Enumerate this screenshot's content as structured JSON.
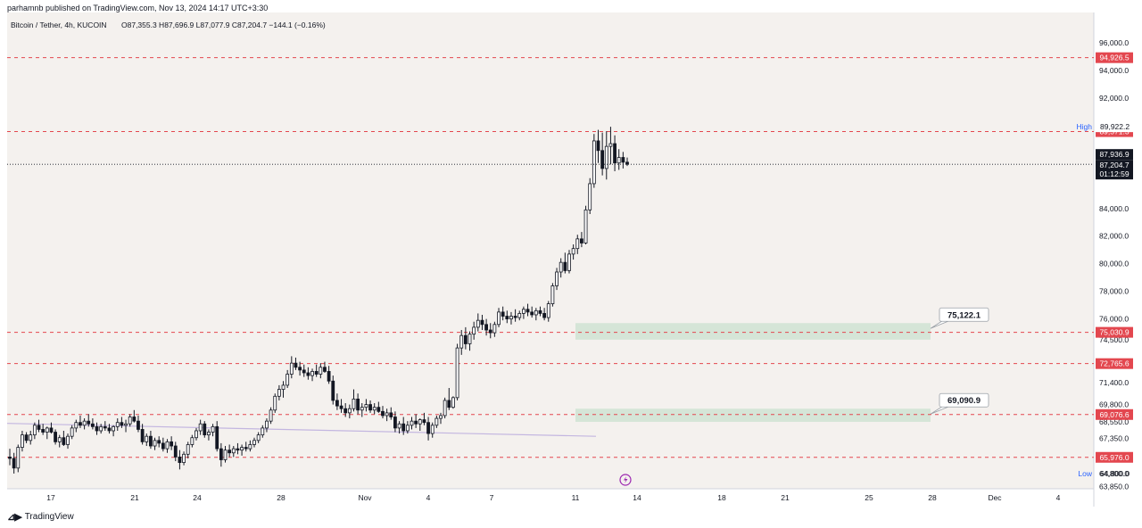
{
  "header": {
    "published_by": "parhamnb published on TradingView.com, Nov 13, 2024 14:17 UTC+3:30",
    "symbol": "Bitcoin / Tether, 4h, KUCOIN",
    "ohlc": "O87,355.3  H87,696.9  L87,077.9  C87,204.7  −144.1 (−0.16%)"
  },
  "footer": {
    "logo_text": "TradingView"
  },
  "colors": {
    "plot_bg": "#f4f1ee",
    "candle": "#131722",
    "level_line": "#e3474f",
    "level_label_bg": "#e3474f",
    "zone_fill": "#cfe3d2",
    "trend_line": "#c3b6e0",
    "last_price_bg": "#131722"
  },
  "chart_data": {
    "type": "candlestick",
    "ylim": [
      63700,
      98200
    ],
    "price_scale_labels": [
      "96,000.0",
      "94,000.0",
      "92,000.0",
      "84,000.0",
      "82,000.0",
      "80,000.0",
      "78,000.0",
      "76,000.0",
      "74,500.0",
      "71,400.0",
      "69,800.0",
      "68,550.0",
      "67,350.0",
      "64,800.0",
      "63,850.0"
    ],
    "time_scale_labels": [
      "17",
      "21",
      "24",
      "28",
      "Nov",
      "4",
      "7",
      "11",
      "14",
      "18",
      "21",
      "25",
      "28",
      "Dec",
      "4"
    ],
    "levels": [
      {
        "label": "94,926.5",
        "price": 94926.5
      },
      {
        "label": "89,571.3",
        "price": 89571.3
      },
      {
        "label": "75,030.9",
        "price": 75030.9
      },
      {
        "label": "72,765.6",
        "price": 72765.6
      },
      {
        "label": "69,076.6",
        "price": 69076.6
      },
      {
        "label": "65,976.0",
        "price": 65976.0
      }
    ],
    "zones": [
      {
        "label": "75,122.1",
        "price_low": 74500,
        "price_high": 75700
      },
      {
        "label": "69,090.9",
        "price_low": 68550,
        "price_high": 69500
      }
    ],
    "high_marker": {
      "label": "High",
      "value": "89,922.2",
      "price": 89922.2
    },
    "low_marker": {
      "label": "Low",
      "value": "64,800.0",
      "price": 64800.0
    },
    "current_price": {
      "label_last_close": "87,936.9",
      "label_price": "87,204.7",
      "countdown": "01:12:59",
      "price": 87204.7
    },
    "trend_line": {
      "start": [
        "Oct 13",
        68500
      ],
      "end": [
        "Nov 11",
        67500
      ]
    },
    "ohlc_4h": [
      [
        66000,
        66600,
        65400,
        65900
      ],
      [
        65900,
        66300,
        64800,
        65200
      ],
      [
        65200,
        66900,
        64900,
        66700
      ],
      [
        66700,
        67900,
        66400,
        67600
      ],
      [
        67600,
        67800,
        67000,
        67200
      ],
      [
        67200,
        67900,
        66900,
        67600
      ],
      [
        67600,
        68500,
        67300,
        68300
      ],
      [
        68300,
        68700,
        67800,
        68000
      ],
      [
        68000,
        68400,
        67600,
        67800
      ],
      [
        67800,
        68200,
        67300,
        68100
      ],
      [
        68100,
        68500,
        67700,
        67800
      ],
      [
        67800,
        68000,
        66900,
        67100
      ],
      [
        67100,
        67600,
        66700,
        67400
      ],
      [
        67400,
        67900,
        66800,
        66900
      ],
      [
        66900,
        67700,
        66600,
        67500
      ],
      [
        67500,
        68300,
        67300,
        68100
      ],
      [
        68100,
        68700,
        67800,
        68500
      ],
      [
        68500,
        69000,
        68100,
        68300
      ],
      [
        68300,
        68800,
        68000,
        68600
      ],
      [
        68600,
        69100,
        68200,
        68400
      ],
      [
        68400,
        68800,
        68000,
        68200
      ],
      [
        68200,
        68500,
        67600,
        67900
      ],
      [
        67900,
        68400,
        67700,
        68200
      ],
      [
        68200,
        68600,
        67900,
        68100
      ],
      [
        68100,
        68400,
        67700,
        67900
      ],
      [
        67900,
        68300,
        67500,
        68200
      ],
      [
        68200,
        68800,
        67900,
        68500
      ],
      [
        68500,
        68900,
        68100,
        68300
      ],
      [
        68300,
        68700,
        67800,
        68400
      ],
      [
        68400,
        69100,
        68200,
        68900
      ],
      [
        68900,
        69400,
        68500,
        68600
      ],
      [
        68600,
        69000,
        67800,
        68000
      ],
      [
        68000,
        68400,
        66900,
        67100
      ],
      [
        67100,
        67700,
        66800,
        67500
      ],
      [
        67500,
        67900,
        66600,
        66800
      ],
      [
        66800,
        67400,
        66500,
        67200
      ],
      [
        67200,
        67500,
        66700,
        67000
      ],
      [
        67000,
        67400,
        66400,
        66600
      ],
      [
        66600,
        67300,
        66300,
        67100
      ],
      [
        67100,
        67500,
        66500,
        66800
      ],
      [
        66800,
        67100,
        65700,
        66000
      ],
      [
        66000,
        66500,
        65100,
        65600
      ],
      [
        65600,
        66400,
        65400,
        66200
      ],
      [
        66200,
        67100,
        65900,
        66900
      ],
      [
        66900,
        67600,
        66700,
        67400
      ],
      [
        67400,
        68100,
        67200,
        67900
      ],
      [
        67900,
        68700,
        67600,
        68400
      ],
      [
        68400,
        68600,
        67400,
        67600
      ],
      [
        67600,
        68000,
        67200,
        67800
      ],
      [
        67800,
        68400,
        67500,
        68200
      ],
      [
        68200,
        68600,
        66400,
        66600
      ],
      [
        66600,
        67000,
        65300,
        65800
      ],
      [
        65800,
        66800,
        65600,
        66500
      ],
      [
        66500,
        66900,
        66000,
        66300
      ],
      [
        66300,
        66800,
        66000,
        66600
      ],
      [
        66600,
        67000,
        66200,
        66500
      ],
      [
        66500,
        66900,
        66100,
        66700
      ],
      [
        66700,
        67100,
        66400,
        66600
      ],
      [
        66600,
        67200,
        66400,
        66900
      ],
      [
        66900,
        67400,
        66700,
        67200
      ],
      [
        67200,
        67800,
        67000,
        67600
      ],
      [
        67600,
        68300,
        67400,
        68100
      ],
      [
        68100,
        68800,
        67800,
        68600
      ],
      [
        68600,
        69600,
        68400,
        69400
      ],
      [
        69400,
        70600,
        69200,
        70400
      ],
      [
        70400,
        71200,
        70100,
        70900
      ],
      [
        70900,
        71500,
        70300,
        71200
      ],
      [
        71200,
        72300,
        71000,
        72000
      ],
      [
        72000,
        73300,
        71700,
        72800
      ],
      [
        72800,
        73200,
        72300,
        72500
      ],
      [
        72500,
        72900,
        71900,
        72300
      ],
      [
        72300,
        72700,
        71800,
        72100
      ],
      [
        72100,
        72500,
        71600,
        71900
      ],
      [
        71900,
        72400,
        71500,
        72200
      ],
      [
        72200,
        72700,
        71800,
        72000
      ],
      [
        72000,
        72800,
        71700,
        72500
      ],
      [
        72500,
        72900,
        72100,
        72200
      ],
      [
        72200,
        72600,
        71300,
        71500
      ],
      [
        71500,
        71900,
        69800,
        70100
      ],
      [
        70100,
        70600,
        69400,
        69700
      ],
      [
        69700,
        70200,
        69200,
        69500
      ],
      [
        69500,
        69900,
        68900,
        69200
      ],
      [
        69200,
        69800,
        68800,
        69500
      ],
      [
        69500,
        70900,
        69300,
        70200
      ],
      [
        70200,
        70600,
        69100,
        69400
      ],
      [
        69400,
        69900,
        68900,
        69600
      ],
      [
        69600,
        70200,
        69300,
        69800
      ],
      [
        69800,
        70100,
        69200,
        69400
      ],
      [
        69400,
        69900,
        69100,
        69600
      ],
      [
        69600,
        70000,
        69200,
        69300
      ],
      [
        69300,
        69700,
        68800,
        69000
      ],
      [
        69000,
        69500,
        68600,
        69200
      ],
      [
        69200,
        69600,
        68700,
        68900
      ],
      [
        68900,
        69300,
        67800,
        68100
      ],
      [
        68100,
        68600,
        67700,
        68400
      ],
      [
        68400,
        68900,
        67600,
        67900
      ],
      [
        67900,
        68600,
        67700,
        68300
      ],
      [
        68300,
        68900,
        68000,
        68600
      ],
      [
        68600,
        69100,
        68100,
        68400
      ],
      [
        68400,
        68800,
        67900,
        68700
      ],
      [
        68700,
        69200,
        68300,
        68500
      ],
      [
        68500,
        68900,
        67200,
        67700
      ],
      [
        67700,
        68500,
        67400,
        68300
      ],
      [
        68300,
        69000,
        68100,
        68800
      ],
      [
        68800,
        69200,
        68400,
        69000
      ],
      [
        69000,
        70300,
        68800,
        70100
      ],
      [
        70100,
        71000,
        69400,
        69600
      ],
      [
        69600,
        70400,
        69500,
        70300
      ],
      [
        70300,
        74200,
        70100,
        73900
      ],
      [
        73900,
        75200,
        73400,
        74800
      ],
      [
        74800,
        75400,
        73800,
        74200
      ],
      [
        74200,
        75100,
        73700,
        74900
      ],
      [
        74900,
        75800,
        74500,
        75400
      ],
      [
        75400,
        76400,
        75100,
        75900
      ],
      [
        75900,
        76300,
        75200,
        75600
      ],
      [
        75600,
        76000,
        74800,
        75200
      ],
      [
        75200,
        75700,
        74600,
        75000
      ],
      [
        75000,
        75800,
        74700,
        75600
      ],
      [
        75600,
        76800,
        75400,
        76500
      ],
      [
        76500,
        76900,
        75900,
        76200
      ],
      [
        76200,
        76600,
        75700,
        76000
      ],
      [
        76000,
        76500,
        75600,
        76200
      ],
      [
        76200,
        76700,
        75800,
        76100
      ],
      [
        76100,
        76600,
        75900,
        76400
      ],
      [
        76400,
        76900,
        76000,
        76700
      ],
      [
        76700,
        77100,
        76200,
        76500
      ],
      [
        76500,
        76900,
        76100,
        76300
      ],
      [
        76300,
        76800,
        75900,
        76600
      ],
      [
        76600,
        76900,
        76200,
        76400
      ],
      [
        76400,
        76800,
        75900,
        76100
      ],
      [
        76100,
        77300,
        75800,
        77100
      ],
      [
        77100,
        78600,
        76900,
        78400
      ],
      [
        78400,
        79700,
        78100,
        79400
      ],
      [
        79400,
        80400,
        79000,
        80100
      ],
      [
        80100,
        80800,
        79300,
        79500
      ],
      [
        79500,
        81000,
        79300,
        80700
      ],
      [
        80700,
        81400,
        80300,
        81100
      ],
      [
        81100,
        82100,
        80700,
        81800
      ],
      [
        81800,
        82300,
        81200,
        81500
      ],
      [
        81500,
        84200,
        81400,
        83900
      ],
      [
        83900,
        86200,
        83600,
        85800
      ],
      [
        85800,
        89400,
        85500,
        88900
      ],
      [
        88900,
        89700,
        87300,
        88200
      ],
      [
        88200,
        89500,
        86400,
        86900
      ],
      [
        86900,
        89600,
        86100,
        88500
      ],
      [
        88500,
        89922,
        87200,
        88700
      ],
      [
        88700,
        89300,
        86700,
        87300
      ],
      [
        87300,
        88300,
        86800,
        87700
      ],
      [
        87700,
        88100,
        86900,
        87355
      ],
      [
        87355,
        87697,
        87078,
        87205
      ]
    ]
  }
}
